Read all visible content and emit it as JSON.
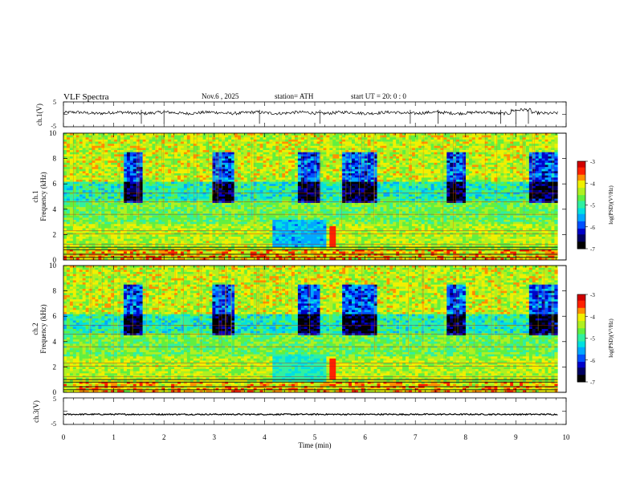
{
  "header": {
    "title": "VLF  Spectra",
    "date": "Nov.6   , 2025",
    "station": "station= ATH",
    "start_ut": "start  UT  =    20: 0   : 0"
  },
  "chart_data": [
    {
      "type": "line",
      "id": "ch1_waveform",
      "ylabel": "ch.1(V)",
      "ylim": [
        -5,
        5
      ],
      "yticks": [
        "5",
        "-5"
      ],
      "xlim": [
        0,
        10
      ],
      "series": [
        {
          "name": "ch.1 waveform",
          "baseline": 0.6,
          "noise_amplitude": 0.6,
          "spikes_at_min": [
            1.55,
            2.0,
            3.9,
            5.1,
            6.9,
            7.45,
            8.7,
            9.0,
            9.25
          ]
        }
      ]
    },
    {
      "type": "heatmap",
      "id": "ch1_spectrogram",
      "ylabel": "ch.1\nFrequency  (kHz)",
      "ylim": [
        0,
        10
      ],
      "yticks": [
        "0",
        "2",
        "4",
        "6",
        "8",
        "10"
      ],
      "xlim": [
        0,
        9.83
      ],
      "colorbar": {
        "label": "log(PSD)(V²/Hz)",
        "range": [
          -7,
          -3
        ],
        "ticks": [
          "-3",
          "-4",
          "-5",
          "-6",
          "-7"
        ]
      }
    },
    {
      "type": "heatmap",
      "id": "ch2_spectrogram",
      "ylabel": "ch.2\nFrequency  (kHz)",
      "ylim": [
        0,
        10
      ],
      "yticks": [
        "0",
        "2",
        "4",
        "6",
        "8",
        "10"
      ],
      "xlim": [
        0,
        9.83
      ],
      "colorbar": {
        "label": "log(PSD)(V²/Hz)",
        "range": [
          -7,
          -3
        ],
        "ticks": [
          "-3",
          "-4",
          "-5",
          "-6",
          "-7"
        ]
      }
    },
    {
      "type": "line",
      "id": "ch3_waveform",
      "ylabel": "ch.3(V)",
      "ylim": [
        -5,
        5
      ],
      "yticks": [
        "5",
        "-5"
      ],
      "xlim": [
        0,
        10
      ],
      "series": [
        {
          "name": "ch.3 waveform",
          "baseline": -1.2,
          "noise_amplitude": 0.25
        }
      ]
    }
  ],
  "x_axis": {
    "label": "Time  (min)",
    "ticks": [
      "0",
      "1",
      "2",
      "3",
      "4",
      "5",
      "6",
      "7",
      "8",
      "9",
      "10"
    ]
  },
  "colormap": [
    "#000000",
    "#000060",
    "#0000c8",
    "#0050ff",
    "#00a8ff",
    "#00e0e0",
    "#30f0a0",
    "#60f040",
    "#b0f020",
    "#f0f000",
    "#ff9000",
    "#ff2000",
    "#d00000",
    "#ffd0d0"
  ]
}
